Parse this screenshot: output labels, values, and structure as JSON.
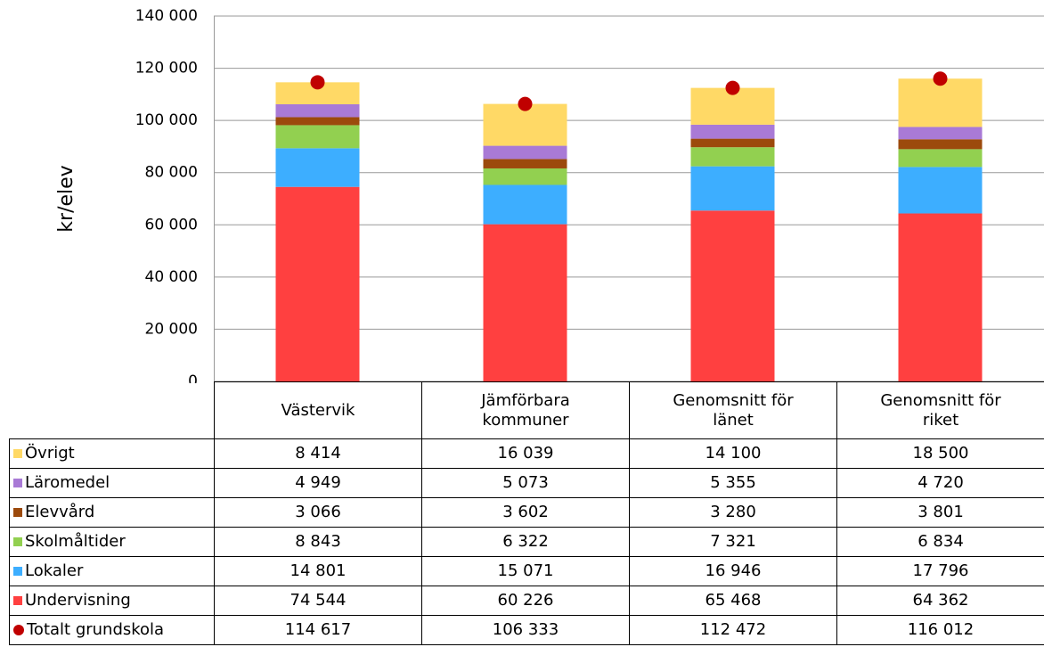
{
  "chart_data": {
    "type": "stacked-bar",
    "y_label": "kr/elev",
    "categories": [
      "Västervik",
      "Jämförbara kommuner",
      "Genomsnitt för länet",
      "Genomsnitt för riket"
    ],
    "ylim": [
      0,
      140000
    ],
    "yticks": [
      0,
      {
        "value": 20000,
        "label": "20 000"
      },
      {
        "value": 40000,
        "label": "40 000"
      },
      {
        "value": 60000,
        "label": "60 000"
      },
      {
        "value": 80000,
        "label": "80 000"
      },
      {
        "value": 100000,
        "label": "100 000"
      },
      {
        "value": 120000,
        "label": "120 000"
      },
      {
        "value": 140000,
        "label": "140 000"
      }
    ],
    "grid": true,
    "series": [
      {
        "name": "Övrigt",
        "color": "#ffd966",
        "values": [
          8414,
          16039,
          14100,
          18500
        ],
        "value_labels": [
          "8 414",
          "16 039",
          "14 100",
          "18 500"
        ]
      },
      {
        "name": "Läromedel",
        "color": "#a97ad6",
        "values": [
          4949,
          5073,
          5355,
          4720
        ],
        "value_labels": [
          "4 949",
          "5 073",
          "5 355",
          "4 720"
        ]
      },
      {
        "name": "Elevvård",
        "color": "#9c4a0c",
        "values": [
          3066,
          3602,
          3280,
          3801
        ],
        "value_labels": [
          "3 066",
          "3 602",
          "3 280",
          "3 801"
        ]
      },
      {
        "name": "Skolmåltider",
        "color": "#92d050",
        "values": [
          8843,
          6322,
          7321,
          6834
        ],
        "value_labels": [
          "8 843",
          "6 322",
          "7 321",
          "6 834"
        ]
      },
      {
        "name": "Lokaler",
        "color": "#3daeff",
        "values": [
          14801,
          15071,
          16946,
          17796
        ],
        "value_labels": [
          "14 801",
          "15 071",
          "16 946",
          "17 796"
        ]
      },
      {
        "name": "Undervisning",
        "color": "#ff4040",
        "values": [
          74544,
          60226,
          65468,
          64362
        ],
        "value_labels": [
          "74 544",
          "60 226",
          "65 468",
          "64 362"
        ]
      }
    ],
    "total": {
      "name": "Totalt grundskola",
      "color": "#c00000",
      "values": [
        114617,
        106333,
        112472,
        116012
      ],
      "value_labels": [
        "114 617",
        "106 333",
        "112 472",
        "116 012"
      ]
    }
  }
}
